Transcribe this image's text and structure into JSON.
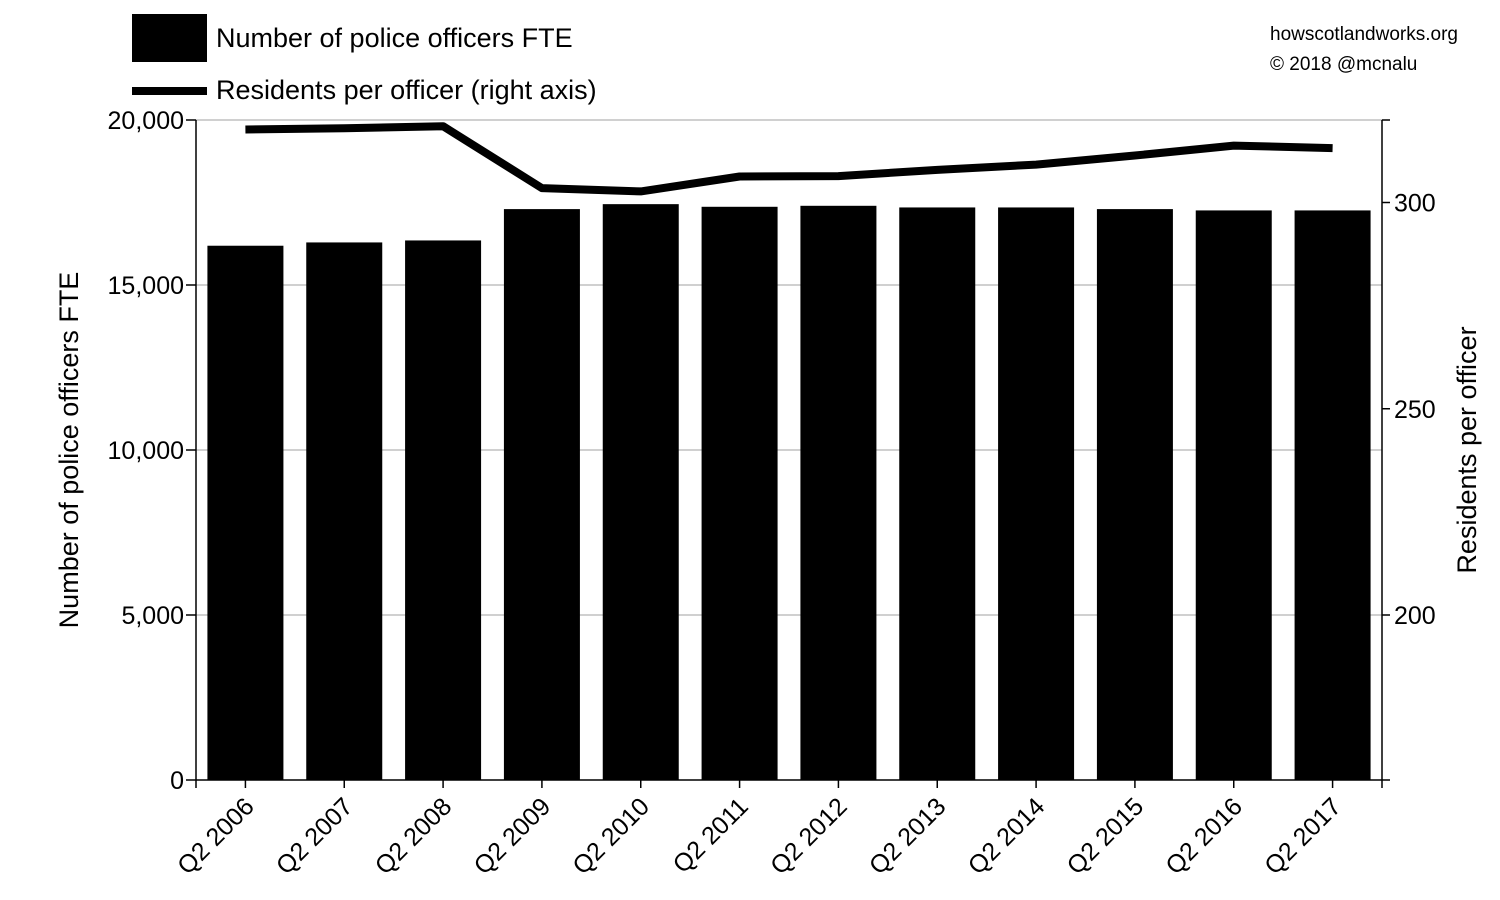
{
  "credits": {
    "site": "howscotlandworks.org",
    "copyright": "© 2018  @mcnalu"
  },
  "legend": {
    "bars_label": "Number of police officers FTE",
    "line_label": "Residents per officer (right axis)"
  },
  "chart_data": {
    "type": "bar",
    "title": "",
    "categories": [
      "Q2 2006",
      "Q2 2007",
      "Q2 2008",
      "Q2 2009",
      "Q2 2010",
      "Q2 2011",
      "Q2 2012",
      "Q2 2013",
      "Q2 2014",
      "Q2 2015",
      "Q2 2016",
      "Q2 2017"
    ],
    "xlabel": "",
    "ylabel": "Number of police officers FTE",
    "ylim": [
      0,
      20000
    ],
    "yticks": [
      0,
      5000,
      10000,
      15000,
      20000
    ],
    "ytick_labels": [
      "0",
      "5,000",
      "10,000",
      "15,000",
      "20,000"
    ],
    "y2label": "Residents per officer",
    "y2lim": [
      160,
      320
    ],
    "y2ticks": [
      200,
      250,
      300
    ],
    "y2tick_labels": [
      "200",
      "250",
      "300"
    ],
    "grid": true,
    "legend_position": "top-left",
    "series": [
      {
        "name": "Number of police officers FTE",
        "type": "bar",
        "axis": "left",
        "color": "#000000",
        "values": [
          16190,
          16290,
          16350,
          17300,
          17450,
          17370,
          17400,
          17350,
          17350,
          17300,
          17260,
          17260
        ]
      },
      {
        "name": "Residents per officer (right axis)",
        "type": "line",
        "axis": "right",
        "color": "#000000",
        "values": [
          317.7,
          318.0,
          318.5,
          303.5,
          302.7,
          306.3,
          306.4,
          307.9,
          309.2,
          311.4,
          313.8,
          313.2
        ]
      }
    ]
  }
}
